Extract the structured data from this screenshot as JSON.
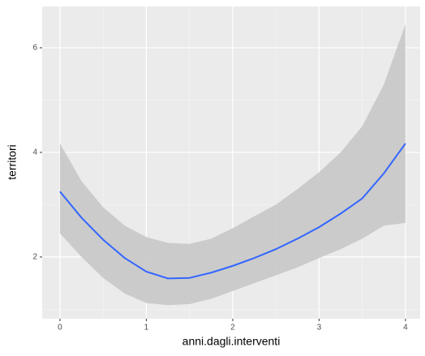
{
  "chart_data": {
    "type": "line",
    "xlabel": "anni.dagli.interventi",
    "ylabel": "territori",
    "x": [
      0,
      0.25,
      0.5,
      0.75,
      1,
      1.25,
      1.5,
      1.75,
      2,
      2.25,
      2.5,
      2.75,
      3,
      3.25,
      3.5,
      3.75,
      4
    ],
    "values": [
      3.25,
      2.75,
      2.33,
      1.98,
      1.72,
      1.59,
      1.6,
      1.7,
      1.83,
      1.98,
      2.15,
      2.35,
      2.57,
      2.83,
      3.12,
      3.6,
      4.17
    ],
    "lower": [
      2.45,
      2.0,
      1.6,
      1.3,
      1.12,
      1.08,
      1.1,
      1.2,
      1.35,
      1.5,
      1.65,
      1.8,
      1.98,
      2.15,
      2.35,
      2.6,
      2.65
    ],
    "upper": [
      4.17,
      3.45,
      2.95,
      2.6,
      2.38,
      2.27,
      2.25,
      2.35,
      2.55,
      2.78,
      3.0,
      3.3,
      3.62,
      4.0,
      4.5,
      5.3,
      6.45
    ],
    "color": "#3366ff",
    "band_color": "#c8c8c8",
    "xlim": [
      -0.206,
      4.17
    ],
    "ylim": [
      0.82,
      6.79
    ],
    "xticks": [
      0,
      1,
      2,
      3,
      4
    ],
    "yticks": [
      2,
      4,
      6
    ],
    "grid": true
  }
}
